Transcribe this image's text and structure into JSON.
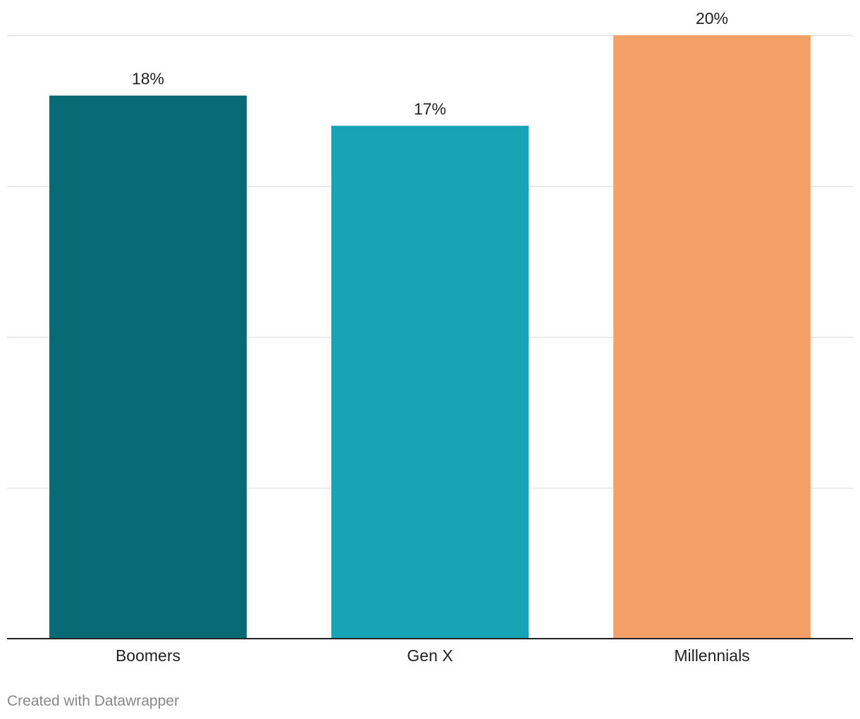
{
  "chart_data": {
    "type": "bar",
    "categories": [
      "Boomers",
      "Gen X",
      "Millennials"
    ],
    "values": [
      18,
      17,
      20
    ],
    "value_labels": [
      "18%",
      "17%",
      "20%"
    ],
    "colors": [
      "#076A74",
      "#17A5B5",
      "#F4A068"
    ],
    "ylim": [
      0,
      20
    ],
    "gridlines": [
      0,
      5,
      10,
      15,
      20
    ],
    "grid": true,
    "title": "",
    "xlabel": "",
    "ylabel": ""
  },
  "footer": {
    "credit": "Created with Datawrapper"
  }
}
